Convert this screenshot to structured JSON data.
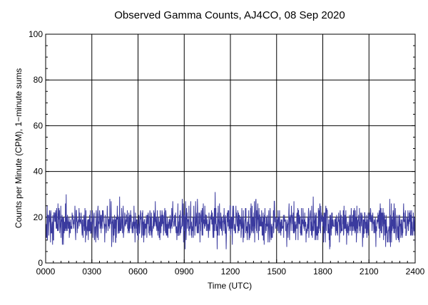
{
  "chart_data": {
    "type": "line",
    "title": "Observed Gamma Counts, AJ4CO, 08 Sep 2020",
    "xlabel": "Time (UTC)",
    "ylabel": "Counts per Minute (CPM), 1−minute sums",
    "xlim": [
      0,
      2400
    ],
    "ylim": [
      0,
      100
    ],
    "x_ticks": [
      "0000",
      "0300",
      "0600",
      "0900",
      "1200",
      "1500",
      "1800",
      "2100",
      "2400"
    ],
    "y_ticks": [
      "0",
      "20",
      "40",
      "60",
      "80",
      "100"
    ],
    "grid": true,
    "series": [
      {
        "color": "#3a3a9e",
        "sampling": "1-minute",
        "count": 1440,
        "mean": 17.5,
        "min": 5,
        "max": 33
      }
    ]
  }
}
